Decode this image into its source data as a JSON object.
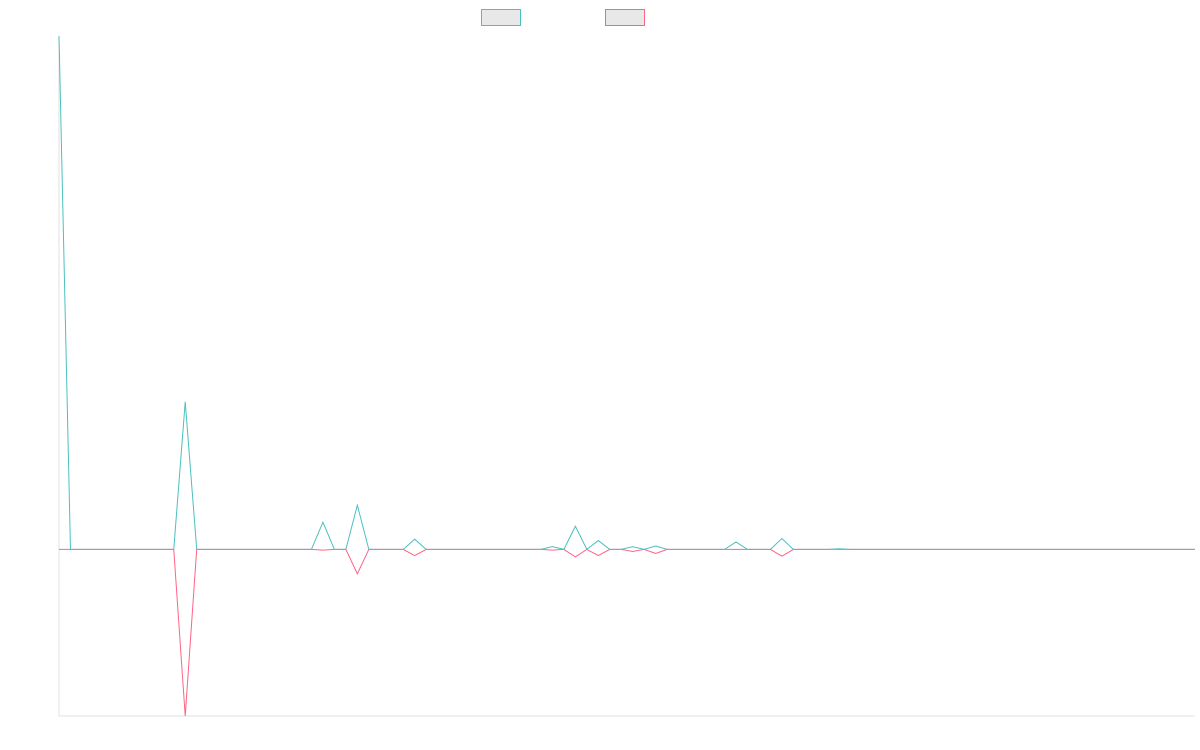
{
  "chart_data": {
    "type": "line",
    "title": "",
    "xlabel": "",
    "ylabel": "",
    "legend_position": "top-center",
    "grid": false,
    "x": [
      0,
      1,
      2,
      3,
      4,
      5,
      6,
      7,
      8,
      9,
      10,
      11,
      12,
      13,
      14,
      15,
      16,
      17,
      18,
      19,
      20,
      21,
      22,
      23,
      24,
      25,
      26,
      27,
      28,
      29,
      30,
      31,
      32,
      33,
      34,
      35,
      36,
      37,
      38,
      39,
      40,
      41,
      42,
      43,
      44,
      45,
      46,
      47,
      48,
      49,
      50,
      51,
      52,
      53,
      54,
      55,
      56,
      57,
      58,
      59,
      60,
      61,
      62,
      63,
      64,
      65,
      66,
      67,
      68,
      69,
      70,
      71,
      72,
      73,
      74,
      75,
      76,
      77,
      78,
      79,
      80,
      81,
      82,
      83,
      84,
      85,
      86,
      87,
      88,
      89,
      90,
      91,
      92,
      93,
      94,
      95,
      96,
      97,
      98,
      99
    ],
    "ylim": [
      -0.245,
      0.755
    ],
    "series": [
      {
        "color": "#4bc0c0",
        "values": [
          0.755,
          0,
          0,
          0,
          0,
          0,
          0,
          0,
          0,
          0,
          0,
          0.217,
          0,
          0,
          0,
          0,
          0,
          0,
          0,
          0,
          0,
          0,
          0,
          0.04,
          0,
          0,
          0.065,
          0,
          0,
          0,
          0,
          0.015,
          0,
          0,
          0,
          0,
          0,
          0,
          0,
          0,
          0,
          0,
          0,
          0.004,
          0,
          0.034,
          0,
          0.013,
          0,
          0,
          0.004,
          0,
          0.005,
          0,
          0,
          0,
          0,
          0,
          0,
          0.011,
          0,
          0,
          0,
          0.016,
          0,
          0,
          0,
          0,
          0.001,
          0,
          0,
          0,
          0,
          0,
          0,
          0,
          0,
          0,
          0,
          0,
          0,
          0,
          0,
          0,
          0,
          0,
          0,
          0,
          0,
          0,
          0,
          0,
          0,
          0,
          0,
          0,
          0,
          0,
          0,
          0
        ]
      },
      {
        "color": "#ff6384",
        "values": [
          0,
          0,
          0,
          0,
          0,
          0,
          0,
          0,
          0,
          0,
          0,
          -0.245,
          0,
          0,
          0,
          0,
          0,
          0,
          0,
          0,
          0,
          0,
          0,
          -0.001,
          0,
          0,
          -0.036,
          0,
          0,
          0,
          0,
          -0.009,
          0,
          0,
          0,
          0,
          0,
          0,
          0,
          0,
          0,
          0,
          0,
          -0.001,
          0,
          -0.011,
          0,
          -0.009,
          0,
          0,
          -0.003,
          0,
          -0.006,
          0,
          0,
          0,
          0,
          0,
          0,
          0,
          0,
          0,
          0,
          -0.01,
          0,
          0,
          0,
          0,
          0,
          0,
          0,
          0,
          0,
          0,
          0,
          0,
          0,
          0,
          0,
          0,
          0,
          0,
          0,
          0,
          0,
          0,
          0,
          0,
          0,
          0,
          0,
          0,
          0,
          0,
          0,
          0,
          0,
          0,
          0,
          0
        ]
      }
    ]
  }
}
